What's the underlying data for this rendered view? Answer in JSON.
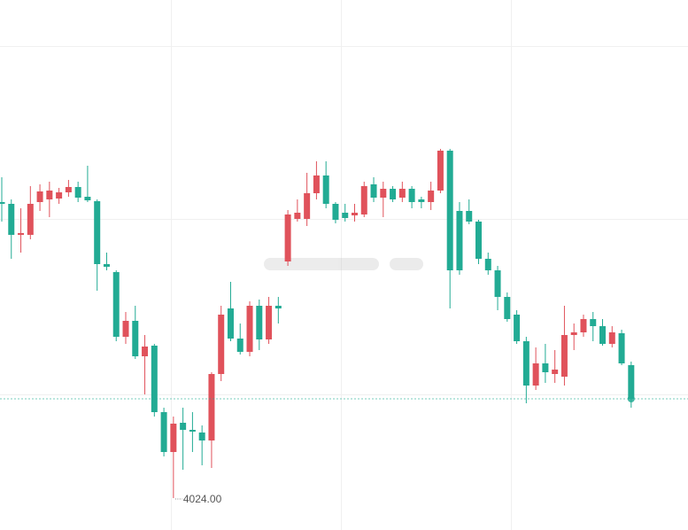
{
  "chart_data": {
    "type": "candlestick",
    "up_color": "#e0525b",
    "down_color": "#22ab94",
    "ylim": [
      4006,
      4305
    ],
    "open": [
      4191,
      4190,
      4172.5,
      4172.5,
      4191,
      4192.5,
      4193,
      4196.5,
      4199.5,
      4194,
      4191.5,
      4156,
      4151.5,
      4115,
      4124,
      4104,
      4110,
      4072.5,
      4050,
      4066.5,
      4062.5,
      4061,
      4056.5,
      4094,
      4131,
      4114,
      4106.5,
      4132.5,
      4113.5,
      4132.5,
      4157.5,
      4181.5,
      4181.5,
      4196,
      4206,
      4190,
      4185,
      4183.5,
      4184,
      4201,
      4193.5,
      4198.5,
      4193.5,
      4198.5,
      4192.5,
      4191,
      4197.5,
      4220,
      4186,
      4186,
      4180,
      4159,
      4152.5,
      4137.5,
      4127.5,
      4112.5,
      4087.5,
      4100,
      4094,
      4092.5,
      4116,
      4117.5,
      4125,
      4121,
      4111,
      4117,
      4099
    ],
    "high": [
      4205,
      4192.5,
      4187.5,
      4200,
      4201,
      4202.5,
      4199,
      4203.5,
      4202.5,
      4211.5,
      4192.5,
      4162.5,
      4152.5,
      4129,
      4132.5,
      4116,
      4111,
      4075,
      4070,
      4075,
      4072.5,
      4065,
      4095,
      4132.5,
      4146,
      4122.5,
      4135,
      4136,
      4137.5,
      4137.5,
      4186.5,
      4192.5,
      4207.5,
      4214,
      4214,
      4191,
      4190,
      4190,
      4202.5,
      4205,
      4202.5,
      4200,
      4202.5,
      4200,
      4194,
      4202.5,
      4221,
      4221,
      4191,
      4192.5,
      4181,
      4162.5,
      4155,
      4140,
      4130,
      4115,
      4109,
      4111,
      4107.5,
      4132.5,
      4122.5,
      4127.5,
      4129,
      4125,
      4121,
      4119,
      4101
    ],
    "low": [
      4180,
      4159,
      4162.5,
      4170,
      4186,
      4182.5,
      4190,
      4194,
      4191,
      4191,
      4141,
      4152.5,
      4112.5,
      4111,
      4102.5,
      4082.5,
      4070,
      4047.5,
      4024,
      4040,
      4050,
      4042.5,
      4041,
      4090,
      4112.5,
      4105,
      4104,
      4107.5,
      4111,
      4122.5,
      4155,
      4180,
      4177.5,
      4192.5,
      4187.5,
      4179,
      4180,
      4180,
      4182.5,
      4191,
      4182.5,
      4191,
      4191,
      4187.5,
      4187.5,
      4186.5,
      4196,
      4131,
      4150,
      4178.5,
      4156,
      4150,
      4130,
      4123.5,
      4111,
      4077.5,
      4085,
      4089,
      4089,
      4087.5,
      4107.5,
      4115,
      4112.5,
      4110,
      4109,
      4099,
      4075
    ],
    "close": [
      4190,
      4172.5,
      4173.5,
      4190,
      4197,
      4197.5,
      4196.5,
      4199.5,
      4193.5,
      4192,
      4156,
      4154.5,
      4115,
      4124,
      4104,
      4109.5,
      4072.5,
      4050,
      4066,
      4062.5,
      4061.5,
      4056.5,
      4094,
      4127.5,
      4114,
      4106.5,
      4132.5,
      4113.5,
      4132.5,
      4131,
      4184,
      4185,
      4196,
      4206,
      4190,
      4181,
      4182,
      4185,
      4200,
      4193.5,
      4198.5,
      4192.5,
      4198.5,
      4191,
      4191,
      4197.5,
      4220,
      4152.5,
      4152.5,
      4180,
      4159,
      4152.5,
      4137.5,
      4125,
      4112.5,
      4087.5,
      4100,
      4095,
      4096.5,
      4116,
      4117.5,
      4125,
      4121,
      4111,
      4117.5,
      4100,
      4080
    ],
    "low_label": "4024.00"
  }
}
